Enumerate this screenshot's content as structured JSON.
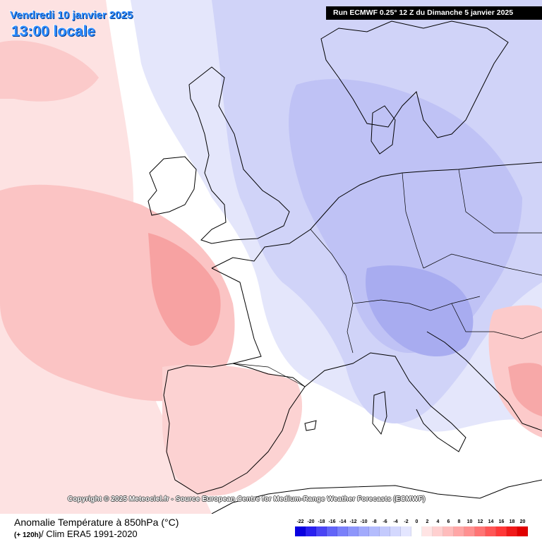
{
  "header": {
    "date": "Vendredi 10 janvier 2025",
    "time": "13:00 locale",
    "run_info": "Run ECMWF 0.25° 12 Z du Dimanche 5 janvier 2025"
  },
  "copyright": "Copyright © 2025 Meteociel.fr - Source European Centre for Medium-Range Weather Forecasts (ECMWF)",
  "legend": {
    "title": "Anomalie Température à 850hPa (°C)",
    "lead": "(+ 120h)",
    "clim": "/ Clim ERA5 1991-2020",
    "ticks": [
      "-22",
      "-20",
      "-18",
      "-16",
      "-14",
      "-12",
      "-10",
      "-8",
      "-6",
      "-4",
      "-2",
      "0",
      "2",
      "4",
      "6",
      "8",
      "10",
      "12",
      "14",
      "16",
      "18",
      "20"
    ],
    "colors": [
      "#0a00e0",
      "#2a20f0",
      "#4a44f5",
      "#6264f8",
      "#7a80fa",
      "#8e96fb",
      "#a2aafc",
      "#b4bcfd",
      "#c4cafd",
      "#d4d8fe",
      "#e4e6ff",
      "#ffffff",
      "#ffe4e4",
      "#ffd0d0",
      "#ffbcbc",
      "#ffa6a6",
      "#ff9090",
      "#ff7474",
      "#ff5656",
      "#ff3838",
      "#f01a1a",
      "#e00000"
    ]
  },
  "map_colors": {
    "warm_light": "#fdd6d6",
    "warm_mid": "#fbbcbc",
    "warm_strong": "#f79a9a",
    "neutral": "#ffffff",
    "cool_light": "#e2e4fb",
    "cool_mid": "#cdd0f8",
    "cool_strong": "#b7bbf4",
    "cool_deep": "#a3a7f0",
    "coastline": "#000000"
  }
}
